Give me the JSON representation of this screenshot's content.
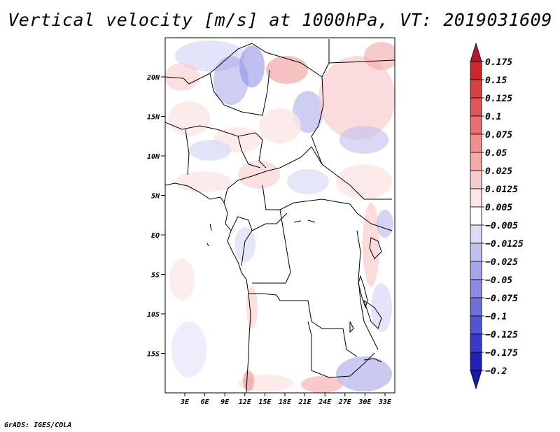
{
  "title": "Vertical velocity [m/s] at 1000hPa, VT: 2019031609",
  "footer": "GrADS: IGES/COLA",
  "map": {
    "lat_labels": [
      "20N",
      "15N",
      "10N",
      "5N",
      "EQ",
      "5S",
      "10S",
      "15S"
    ],
    "lon_labels": [
      "3E",
      "6E",
      "9E",
      "12E",
      "15E",
      "18E",
      "21E",
      "24E",
      "27E",
      "30E",
      "33E"
    ]
  },
  "colorbar": {
    "levels": [
      "0.175",
      "0.15",
      "0.125",
      "0.1",
      "0.075",
      "0.05",
      "0.025",
      "0.0125",
      "0.005",
      "-0.005",
      "-0.0125",
      "-0.025",
      "-0.05",
      "-0.075",
      "-0.1",
      "-0.125",
      "-0.175",
      "-0.2"
    ],
    "colors": [
      "#b2182b",
      "#cc2a2a",
      "#d94040",
      "#e05555",
      "#e87070",
      "#ef8e8e",
      "#f4a9a9",
      "#f9cccc",
      "#fde6e6",
      "#ffffff",
      "#dcdcf7",
      "#c0c0f0",
      "#a5a5ea",
      "#8a8ae3",
      "#6f6fdc",
      "#5454d5",
      "#3939ce",
      "#2020b8",
      "#1a1aa0"
    ]
  }
}
